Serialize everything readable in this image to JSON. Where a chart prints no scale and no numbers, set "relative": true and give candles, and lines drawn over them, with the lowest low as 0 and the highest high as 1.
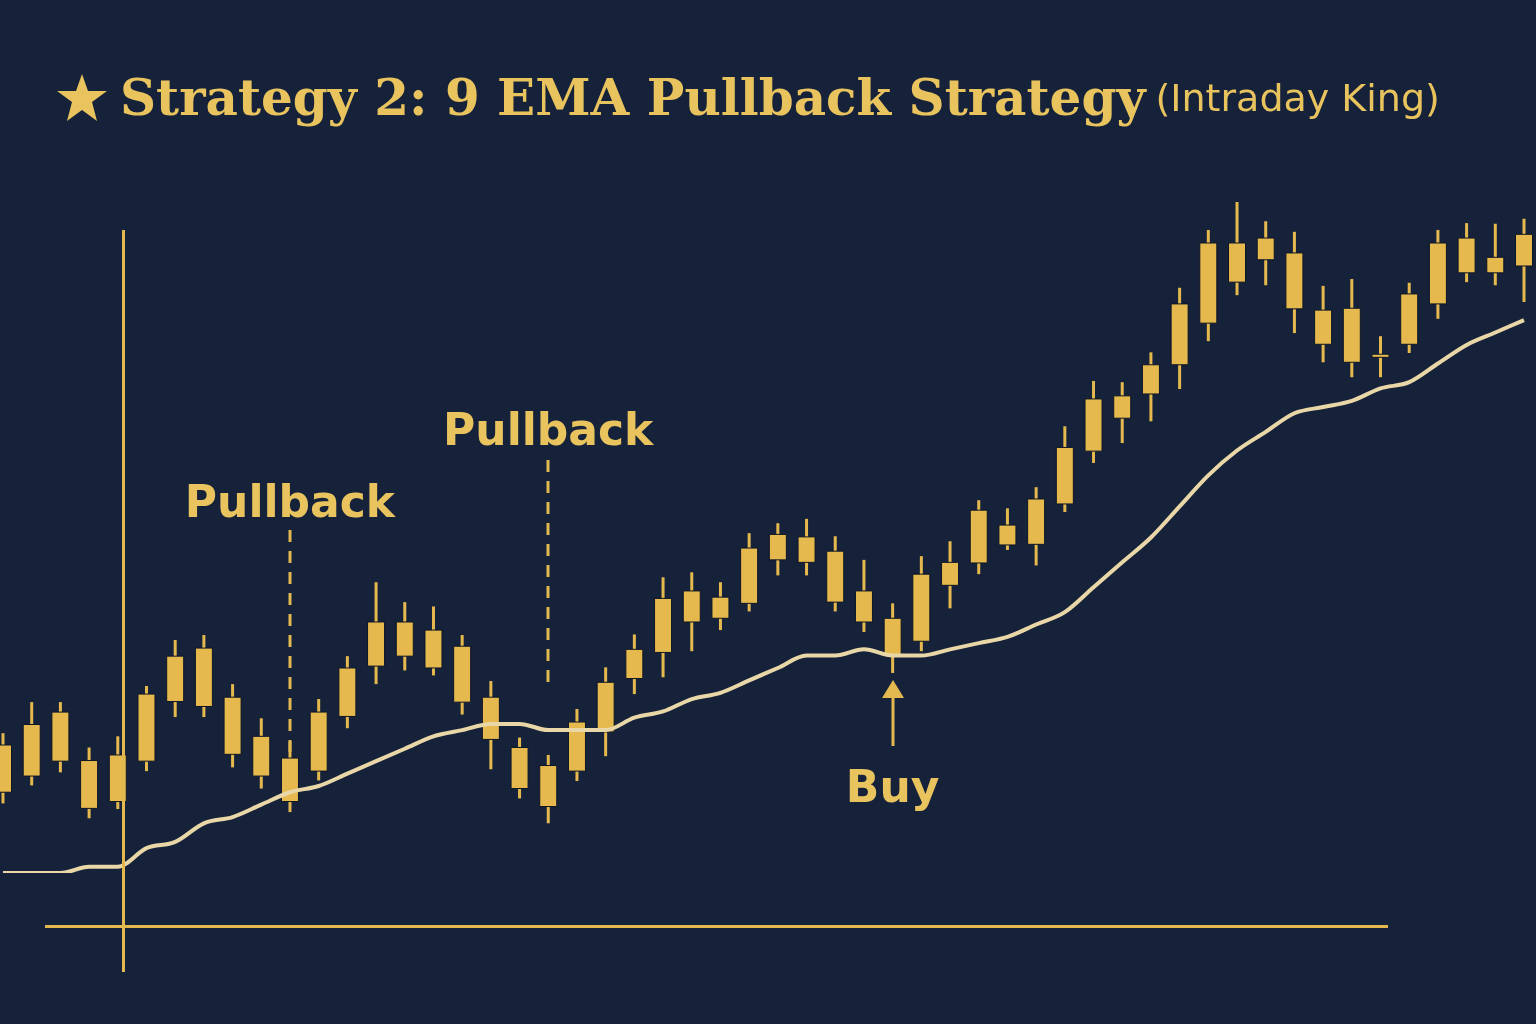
{
  "chart_data": {
    "type": "candlestick",
    "title": "Strategy 2: 9 EMA Pullback Strategy",
    "subtitle": "(Intraday King)",
    "relative": true,
    "color": "#e6b94e",
    "categories": [
      null,
      null,
      null,
      null,
      null,
      null,
      null,
      null,
      null,
      null,
      null,
      null,
      null,
      null,
      null,
      null,
      null,
      null,
      null,
      null,
      null,
      null,
      null,
      null,
      null,
      null,
      null,
      null,
      null,
      null,
      null,
      null,
      null,
      null,
      null,
      null,
      null,
      null,
      null,
      null,
      null,
      null,
      null,
      null,
      null,
      null,
      null,
      null,
      null,
      null,
      null,
      null,
      null,
      null
    ],
    "ohlc": [
      [
        0.05,
        0.145,
        0.032,
        0.126
      ],
      [
        0.076,
        0.195,
        0.061,
        0.159
      ],
      [
        0.1,
        0.195,
        0.082,
        0.179
      ],
      [
        0.024,
        0.122,
        0.008,
        0.101
      ],
      [
        0.035,
        0.14,
        0.023,
        0.11
      ],
      [
        0.1,
        0.221,
        0.084,
        0.208
      ],
      [
        0.196,
        0.295,
        0.171,
        0.269
      ],
      [
        0.188,
        0.303,
        0.171,
        0.282
      ],
      [
        0.111,
        0.224,
        0.09,
        0.203
      ],
      [
        0.076,
        0.169,
        0.056,
        0.14
      ],
      [
        0.035,
        0.132,
        0.018,
        0.105
      ],
      [
        0.084,
        0.2,
        0.069,
        0.179
      ],
      [
        0.172,
        0.269,
        0.153,
        0.25
      ],
      [
        0.253,
        0.388,
        0.224,
        0.324
      ],
      [
        0.269,
        0.356,
        0.246,
        0.324
      ],
      [
        0.25,
        0.349,
        0.238,
        0.311
      ],
      [
        0.195,
        0.303,
        0.175,
        0.285
      ],
      [
        0.135,
        0.229,
        0.087,
        0.203
      ],
      [
        0.056,
        0.138,
        0.04,
        0.122
      ],
      [
        0.027,
        0.11,
        0,
        0.093
      ],
      [
        0.084,
        0.184,
        0.068,
        0.163
      ],
      [
        0.147,
        0.251,
        0.108,
        0.227
      ],
      [
        0.233,
        0.304,
        0.208,
        0.28
      ],
      [
        0.275,
        0.396,
        0.235,
        0.362
      ],
      [
        0.324,
        0.404,
        0.277,
        0.374
      ],
      [
        0.33,
        0.388,
        0.311,
        0.364
      ],
      [
        0.354,
        0.467,
        0.341,
        0.443
      ],
      [
        0.424,
        0.483,
        0.399,
        0.465
      ],
      [
        0.42,
        0.49,
        0.399,
        0.461
      ],
      [
        0.356,
        0.462,
        0.341,
        0.438
      ],
      [
        0.324,
        0.424,
        0.308,
        0.374
      ],
      [
        0.271,
        0.354,
        0.242,
        0.33
      ],
      [
        0.293,
        0.43,
        0.277,
        0.401
      ],
      [
        0.383,
        0.454,
        0.346,
        0.42
      ],
      [
        0.419,
        0.52,
        0.401,
        0.504
      ],
      [
        0.448,
        0.507,
        0.44,
        0.48
      ],
      [
        0.449,
        0.541,
        0.415,
        0.522
      ],
      [
        0.514,
        0.639,
        0.501,
        0.605
      ],
      [
        0.599,
        0.712,
        0.58,
        0.683
      ],
      [
        0.652,
        0.71,
        0.612,
        0.688
      ],
      [
        0.691,
        0.758,
        0.647,
        0.738
      ],
      [
        0.738,
        0.862,
        0.699,
        0.836
      ],
      [
        0.805,
        0.955,
        0.776,
        0.934
      ],
      [
        0.871,
        1,
        0.85,
        0.934
      ],
      [
        0.907,
        0.969,
        0.866,
        0.942
      ],
      [
        0.828,
        0.952,
        0.789,
        0.918
      ],
      [
        0.771,
        0.865,
        0.742,
        0.826
      ],
      [
        0.742,
        0.876,
        0.718,
        0.829
      ],
      [
        0.75,
        0.784,
        0.718,
        0.755
      ],
      [
        0.771,
        0.87,
        0.757,
        0.852
      ],
      [
        0.836,
        0.955,
        0.812,
        0.934
      ],
      [
        0.886,
        0.966,
        0.871,
        0.942
      ],
      [
        0.886,
        0.965,
        0.866,
        0.911
      ],
      [
        0.897,
        0.973,
        0.839,
        0.948
      ]
    ],
    "series": [
      {
        "type": "line",
        "color": "#ead7a8",
        "values": [
          -0.08,
          -0.08,
          -0.08,
          -0.07,
          -0.07,
          -0.04,
          -0.03,
          0,
          0.01,
          0.03,
          0.05,
          0.06,
          0.08,
          0.1,
          0.12,
          0.14,
          0.15,
          0.16,
          0.16,
          0.15,
          0.15,
          0.15,
          0.17,
          0.18,
          0.2,
          0.21,
          0.23,
          0.25,
          0.27,
          0.27,
          0.28,
          0.27,
          0.27,
          0.28,
          0.29,
          0.3,
          0.32,
          0.34,
          0.38,
          0.42,
          0.46,
          0.51,
          0.56,
          0.6,
          0.63,
          0.66,
          0.67,
          0.68,
          0.7,
          0.71,
          0.74,
          0.77,
          0.79,
          0.81
        ]
      }
    ],
    "annotations": [
      "Pullback",
      "Pullback",
      "Buy"
    ]
  }
}
